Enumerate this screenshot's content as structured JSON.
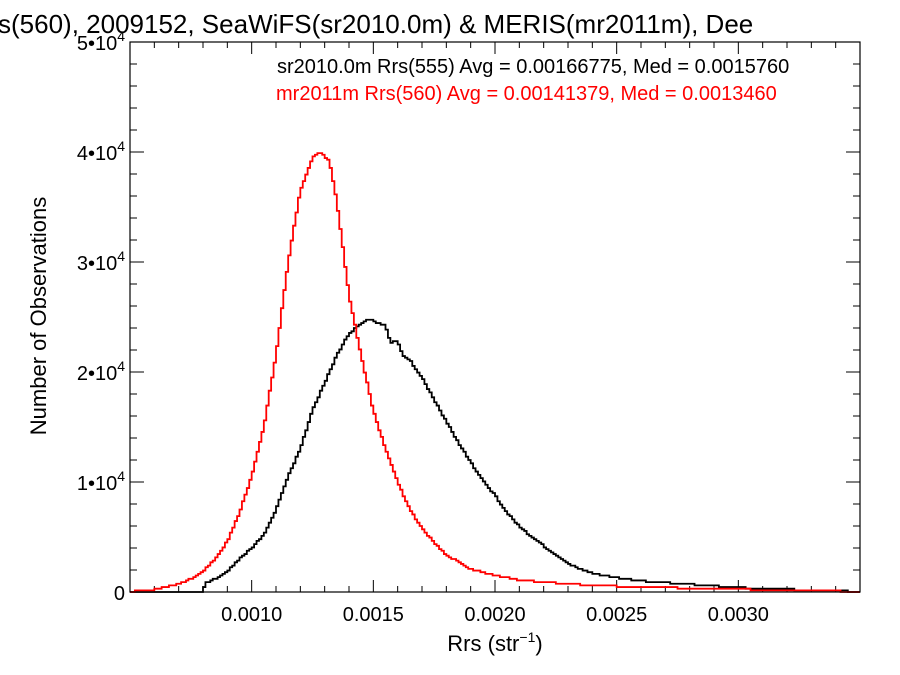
{
  "chart_data": {
    "type": "line",
    "title": "s(560), 2009152, SeaWiFS(sr2010.0m) & MERIS(mr2011m), Dee",
    "xlabel": "Rrs (str",
    "xlabel_sup": "−1",
    "xlabel_close": ")",
    "ylabel": "Number of Observations",
    "xlim": [
      0.0005,
      0.0035
    ],
    "ylim": [
      0,
      50000
    ],
    "xticks": [
      {
        "value": 0.001,
        "label": "0.0010"
      },
      {
        "value": 0.0015,
        "label": "0.0015"
      },
      {
        "value": 0.002,
        "label": "0.0020"
      },
      {
        "value": 0.0025,
        "label": "0.0025"
      },
      {
        "value": 0.003,
        "label": "0.0030"
      }
    ],
    "yticks": [
      {
        "value": 0,
        "base": "0",
        "exp": ""
      },
      {
        "value": 10000,
        "base": "1•10",
        "exp": "4"
      },
      {
        "value": 20000,
        "base": "2•10",
        "exp": "4"
      },
      {
        "value": 30000,
        "base": "3•10",
        "exp": "4"
      },
      {
        "value": 40000,
        "base": "4•10",
        "exp": "4"
      },
      {
        "value": 50000,
        "base": "5•10",
        "exp": "4"
      }
    ],
    "grid": false,
    "legend": "top",
    "series": [
      {
        "name": "sr2010.0m Rrs(555) Avg = 0.00166775, Med = 0.0015760",
        "color": "#000000",
        "step": "histogram",
        "points": [
          [
            0.0005,
            0
          ],
          [
            0.0008,
            0
          ],
          [
            0.00081,
            800
          ],
          [
            0.00085,
            1200
          ],
          [
            0.0009,
            1900
          ],
          [
            0.00095,
            3000
          ],
          [
            0.001,
            4000
          ],
          [
            0.00105,
            5200
          ],
          [
            0.0011,
            7500
          ],
          [
            0.00115,
            10500
          ],
          [
            0.0012,
            13000
          ],
          [
            0.00125,
            16500
          ],
          [
            0.0013,
            19000
          ],
          [
            0.00135,
            21500
          ],
          [
            0.0014,
            23500
          ],
          [
            0.00145,
            24400
          ],
          [
            0.00148,
            24800
          ],
          [
            0.0015,
            24700
          ],
          [
            0.00152,
            24400
          ],
          [
            0.00155,
            24300
          ],
          [
            0.00157,
            22700
          ],
          [
            0.0016,
            22800
          ],
          [
            0.00162,
            21600
          ],
          [
            0.00165,
            21100
          ],
          [
            0.0017,
            19500
          ],
          [
            0.00175,
            17500
          ],
          [
            0.0018,
            15500
          ],
          [
            0.00185,
            13600
          ],
          [
            0.0019,
            11800
          ],
          [
            0.00195,
            10200
          ],
          [
            0.002,
            8800
          ],
          [
            0.00205,
            7200
          ],
          [
            0.0021,
            6000
          ],
          [
            0.00215,
            5000
          ],
          [
            0.0022,
            4200
          ],
          [
            0.00225,
            3300
          ],
          [
            0.0023,
            2600
          ],
          [
            0.00235,
            2100
          ],
          [
            0.0024,
            1700
          ],
          [
            0.0025,
            1300
          ],
          [
            0.0026,
            1000
          ],
          [
            0.0028,
            700
          ],
          [
            0.003,
            400
          ],
          [
            0.0032,
            250
          ],
          [
            0.0034,
            100
          ],
          [
            0.0035,
            50
          ]
        ]
      },
      {
        "name": "mr2011m Rrs(560) Avg = 0.00141379, Med = 0.0013460",
        "color": "#ff0000",
        "step": "histogram",
        "points": [
          [
            0.0005,
            50
          ],
          [
            0.0006,
            200
          ],
          [
            0.0007,
            700
          ],
          [
            0.00075,
            1200
          ],
          [
            0.0008,
            1900
          ],
          [
            0.00085,
            3000
          ],
          [
            0.0009,
            4600
          ],
          [
            0.00095,
            7200
          ],
          [
            0.001,
            10500
          ],
          [
            0.00105,
            15000
          ],
          [
            0.0011,
            21500
          ],
          [
            0.00115,
            30000
          ],
          [
            0.0012,
            36500
          ],
          [
            0.00125,
            39500
          ],
          [
            0.00128,
            40000
          ],
          [
            0.00132,
            39200
          ],
          [
            0.00135,
            35500
          ],
          [
            0.00138,
            30500
          ],
          [
            0.0014,
            27000
          ],
          [
            0.00145,
            21500
          ],
          [
            0.0015,
            16500
          ],
          [
            0.00155,
            13000
          ],
          [
            0.0016,
            10000
          ],
          [
            0.00165,
            7500
          ],
          [
            0.0017,
            5800
          ],
          [
            0.00175,
            4500
          ],
          [
            0.0018,
            3400
          ],
          [
            0.0019,
            2100
          ],
          [
            0.002,
            1500
          ],
          [
            0.0021,
            1100
          ],
          [
            0.0022,
            900
          ],
          [
            0.0024,
            600
          ],
          [
            0.0026,
            450
          ],
          [
            0.0028,
            350
          ],
          [
            0.003,
            250
          ],
          [
            0.0032,
            150
          ],
          [
            0.0034,
            80
          ],
          [
            0.0035,
            50
          ]
        ]
      }
    ]
  }
}
